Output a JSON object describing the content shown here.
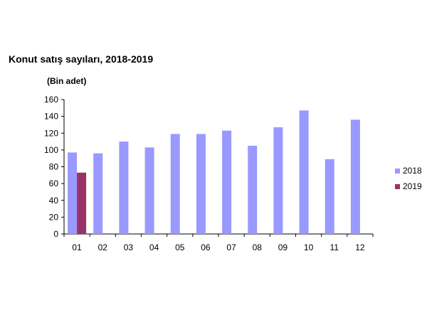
{
  "chart_data": {
    "type": "bar",
    "title": "Konut satış sayıları, 2018-2019",
    "ylabel": "(Bin adet)",
    "xlabel": "",
    "categories": [
      "01",
      "02",
      "03",
      "04",
      "05",
      "06",
      "07",
      "08",
      "09",
      "10",
      "11",
      "12"
    ],
    "series": [
      {
        "name": "2018",
        "color": "#9999ff",
        "values": [
          97,
          96,
          110,
          103,
          119,
          119,
          123,
          105,
          127,
          147,
          89,
          136
        ]
      },
      {
        "name": "2019",
        "color": "#993366",
        "values": [
          73,
          null,
          null,
          null,
          null,
          null,
          null,
          null,
          null,
          null,
          null,
          null
        ]
      }
    ],
    "ylim": [
      0,
      160
    ],
    "yticks": [
      "0",
      "20",
      "40",
      "60",
      "80",
      "100",
      "120",
      "140",
      "160"
    ],
    "grid": false,
    "legend": "right"
  }
}
